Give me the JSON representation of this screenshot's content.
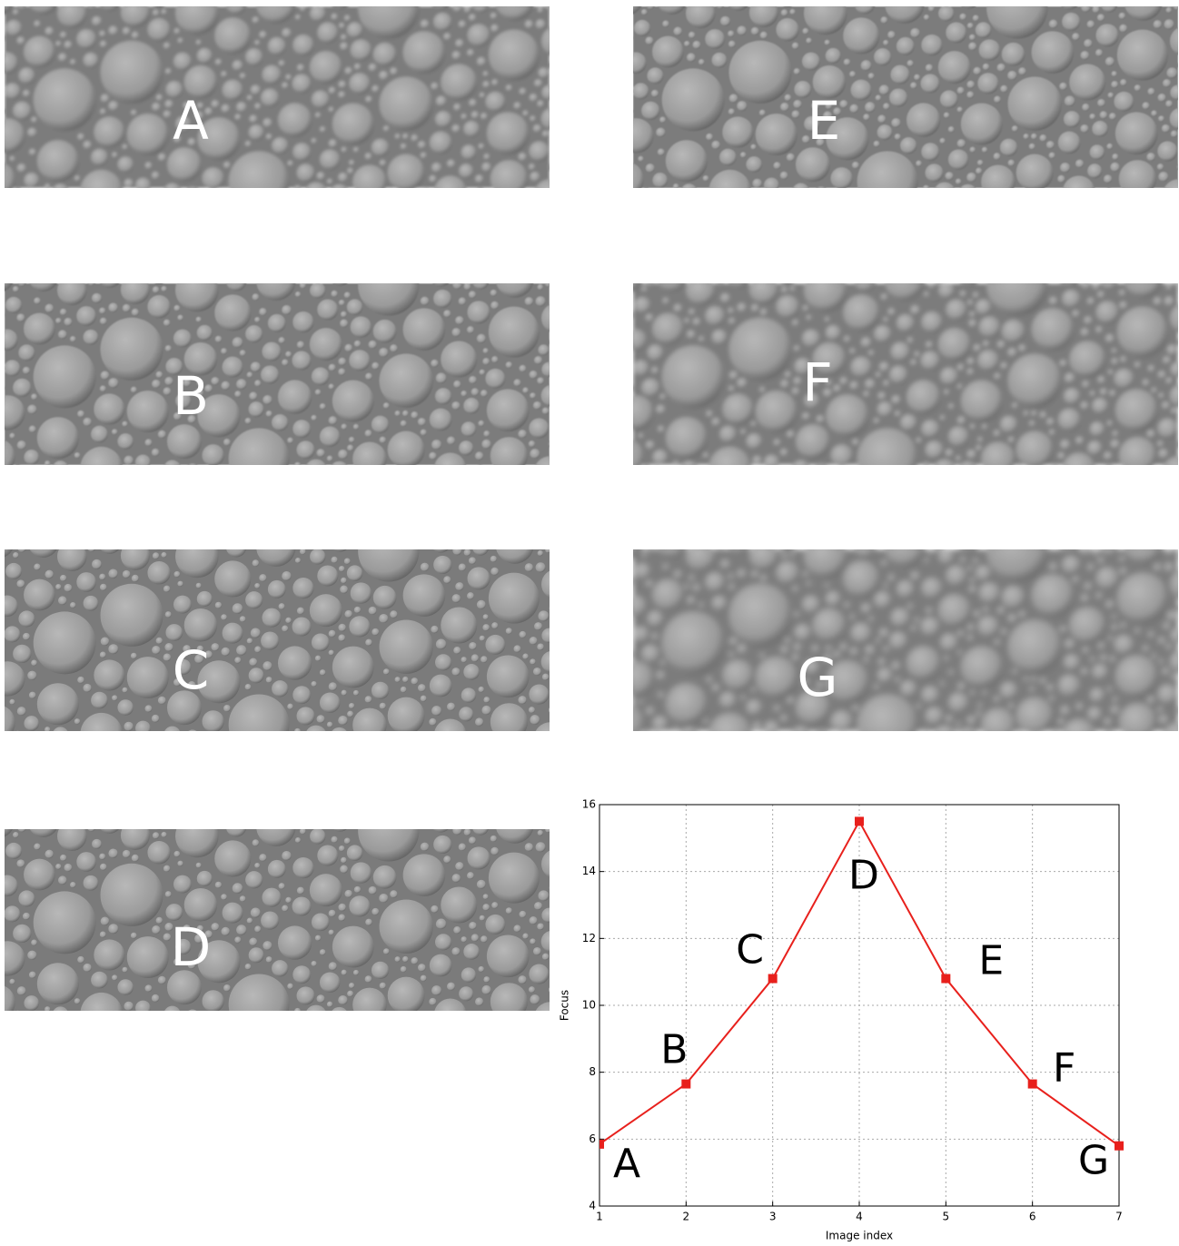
{
  "panels": [
    {
      "label": "A"
    },
    {
      "label": "B"
    },
    {
      "label": "C"
    },
    {
      "label": "D"
    },
    {
      "label": "E"
    },
    {
      "label": "F"
    },
    {
      "label": "G"
    }
  ],
  "chart_data": {
    "type": "line",
    "x": [
      1,
      2,
      3,
      4,
      5,
      6,
      7
    ],
    "series": [
      {
        "color": "#e8201c",
        "values": [
          5.85,
          7.65,
          10.8,
          15.5,
          10.8,
          7.65,
          5.8
        ]
      }
    ],
    "point_labels": [
      "A",
      "B",
      "C",
      "D",
      "E",
      "F",
      "G"
    ],
    "x_label": "Image index",
    "y_label": "Focus",
    "xlim": [
      1,
      7
    ],
    "ylim": [
      4,
      16
    ],
    "xticks": [
      1,
      2,
      3,
      4,
      5,
      6,
      7
    ],
    "yticks": [
      4,
      6,
      8,
      10,
      12,
      14,
      16
    ],
    "grid": true
  }
}
